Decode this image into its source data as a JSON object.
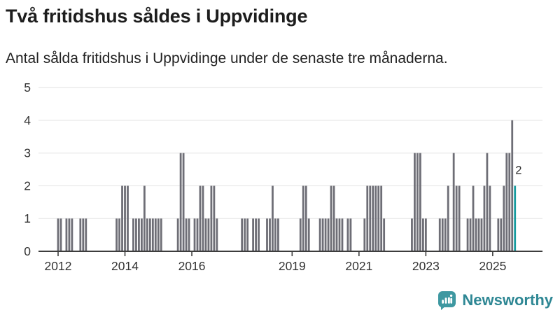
{
  "header": {
    "title": "Två fritidshus såldes i Uppvidinge",
    "subtitle": "Antal sålda fritidshus i Uppvidinge under de senaste tre månaderna."
  },
  "chart_data": {
    "type": "bar",
    "title": "Två fritidshus såldes i Uppvidinge",
    "subtitle": "Antal sålda fritidshus i Uppvidinge under de senaste tre månaderna.",
    "xlabel": "",
    "ylabel": "",
    "ylim": [
      0,
      5
    ],
    "yticks": [
      0,
      1,
      2,
      3,
      4,
      5
    ],
    "xtick_years": [
      "2012",
      "2014",
      "2016",
      "2019",
      "2021",
      "2023",
      "2025"
    ],
    "grid": "horizontal",
    "frequency": "monthly",
    "start_month": "2011-06",
    "values": [
      0,
      0,
      0,
      0,
      0,
      0,
      0,
      1,
      1,
      0,
      1,
      1,
      1,
      0,
      0,
      1,
      1,
      1,
      0,
      0,
      0,
      0,
      0,
      0,
      0,
      0,
      0,
      0,
      1,
      1,
      2,
      2,
      2,
      0,
      1,
      1,
      1,
      1,
      2,
      1,
      1,
      1,
      1,
      1,
      1,
      0,
      0,
      0,
      0,
      0,
      1,
      3,
      3,
      1,
      1,
      0,
      1,
      1,
      2,
      2,
      1,
      1,
      2,
      2,
      1,
      0,
      0,
      0,
      0,
      0,
      0,
      0,
      0,
      1,
      1,
      1,
      0,
      1,
      1,
      1,
      0,
      0,
      1,
      1,
      2,
      1,
      1,
      0,
      0,
      0,
      0,
      0,
      0,
      0,
      1,
      2,
      2,
      1,
      0,
      0,
      0,
      1,
      1,
      1,
      1,
      2,
      2,
      1,
      1,
      1,
      0,
      1,
      1,
      0,
      0,
      0,
      0,
      1,
      2,
      2,
      2,
      2,
      2,
      2,
      1,
      0,
      0,
      0,
      0,
      0,
      0,
      0,
      0,
      0,
      1,
      3,
      3,
      3,
      1,
      1,
      0,
      0,
      0,
      0,
      1,
      1,
      1,
      2,
      0,
      3,
      2,
      2,
      0,
      0,
      1,
      1,
      2,
      1,
      1,
      1,
      2,
      3,
      2,
      0,
      0,
      1,
      1,
      2,
      3,
      3,
      4,
      2
    ],
    "highlight": {
      "month": "2025-09",
      "value": 2,
      "label": "2"
    },
    "annotation_label": "2"
  },
  "footer": {
    "logo_text": "Newsworthy"
  },
  "colors": {
    "bar": "#6e6e76",
    "highlight": "#169b9e",
    "grid": "#e8e8e8",
    "axis": "#3d3d3d",
    "title_text": "#1d1d1d",
    "axis_text": "#333333",
    "annotation_text": "#333333",
    "logo_icon": "#3e98a1",
    "logo_text": "#2e8794",
    "background": "#ffffff"
  }
}
